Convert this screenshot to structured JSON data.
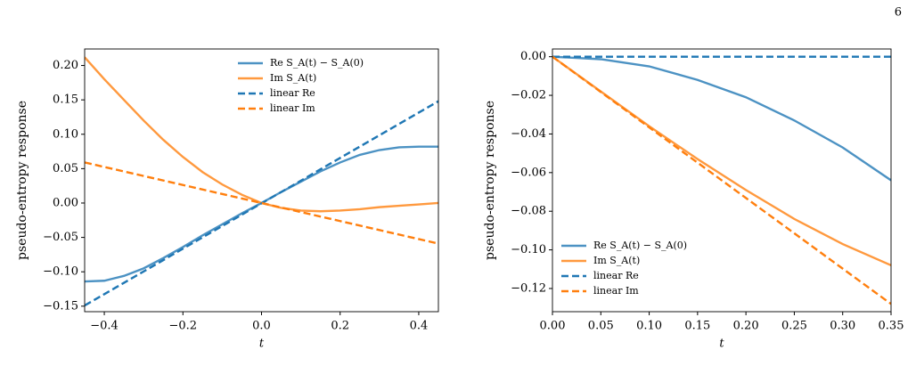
{
  "page_number": "6",
  "chart_data": [
    {
      "type": "line",
      "xlabel": "t",
      "ylabel": "pseudo-entropy response",
      "xlim": [
        -0.45,
        0.45
      ],
      "ylim": [
        -0.158,
        0.224
      ],
      "xticks": [
        {
          "value": -0.4,
          "label": "−0.4"
        },
        {
          "value": -0.2,
          "label": "−0.2"
        },
        {
          "value": 0,
          "label": "0.0"
        },
        {
          "value": 0.2,
          "label": "0.2"
        },
        {
          "value": 0.4,
          "label": "0.4"
        }
      ],
      "yticks": [
        {
          "value": -0.15,
          "label": "−0.15"
        },
        {
          "value": -0.1,
          "label": "−0.10"
        },
        {
          "value": -0.05,
          "label": "−0.05"
        },
        {
          "value": 0,
          "label": "0.00"
        },
        {
          "value": 0.05,
          "label": "0.05"
        },
        {
          "value": 0.1,
          "label": "0.10"
        },
        {
          "value": 0.15,
          "label": "0.15"
        },
        {
          "value": 0.2,
          "label": "0.20"
        }
      ],
      "legend": "upper right",
      "series": [
        {
          "name": "Re S_A(t) − S_A(0)",
          "color": "#1f77b4",
          "style": "solid",
          "x": [
            -0.45,
            -0.4,
            -0.35,
            -0.3,
            -0.25,
            -0.2,
            -0.15,
            -0.1,
            -0.05,
            0,
            0.05,
            0.1,
            0.15,
            0.2,
            0.25,
            0.3,
            0.35,
            0.4,
            0.45
          ],
          "values": [
            -0.114,
            -0.113,
            -0.106,
            -0.095,
            -0.08,
            -0.064,
            -0.047,
            -0.031,
            -0.015,
            0,
            0.016,
            0.031,
            0.046,
            0.059,
            0.07,
            0.077,
            0.081,
            0.082,
            0.082
          ]
        },
        {
          "name": "Im S_A(t)",
          "color": "#ff7f0e",
          "style": "solid",
          "x": [
            -0.45,
            -0.4,
            -0.35,
            -0.3,
            -0.25,
            -0.2,
            -0.15,
            -0.1,
            -0.05,
            0,
            0.05,
            0.1,
            0.15,
            0.2,
            0.25,
            0.3,
            0.35,
            0.4,
            0.45
          ],
          "values": [
            0.212,
            0.18,
            0.15,
            0.12,
            0.092,
            0.067,
            0.045,
            0.027,
            0.012,
            0,
            -0.007,
            -0.011,
            -0.012,
            -0.011,
            -0.009,
            -0.006,
            -0.004,
            -0.002,
            0
          ]
        },
        {
          "name": "linear Re",
          "color": "#1f77b4",
          "style": "dashed",
          "x": [
            -0.45,
            0.45
          ],
          "values": [
            -0.149,
            0.148
          ]
        },
        {
          "name": "linear Im",
          "color": "#ff7f0e",
          "style": "dashed",
          "x": [
            -0.45,
            0.45
          ],
          "values": [
            0.059,
            -0.059
          ]
        }
      ]
    },
    {
      "type": "line",
      "xlabel": "t",
      "ylabel": "pseudo-entropy response",
      "xlim": [
        0,
        0.35
      ],
      "ylim": [
        -0.132,
        0.004
      ],
      "xticks": [
        {
          "value": 0,
          "label": "0.00"
        },
        {
          "value": 0.05,
          "label": "0.05"
        },
        {
          "value": 0.1,
          "label": "0.10"
        },
        {
          "value": 0.15,
          "label": "0.15"
        },
        {
          "value": 0.2,
          "label": "0.20"
        },
        {
          "value": 0.25,
          "label": "0.25"
        },
        {
          "value": 0.3,
          "label": "0.30"
        },
        {
          "value": 0.35,
          "label": "0.35"
        }
      ],
      "yticks": [
        {
          "value": -0.12,
          "label": "−0.12"
        },
        {
          "value": -0.1,
          "label": "−0.10"
        },
        {
          "value": -0.08,
          "label": "−0.08"
        },
        {
          "value": -0.06,
          "label": "−0.06"
        },
        {
          "value": -0.04,
          "label": "−0.04"
        },
        {
          "value": -0.02,
          "label": "−0.02"
        },
        {
          "value": 0,
          "label": "0.00"
        }
      ],
      "legend": "lower left",
      "series": [
        {
          "name": "Re S_A(t) − S_A(0)",
          "color": "#1f77b4",
          "style": "solid",
          "x": [
            0,
            0.05,
            0.1,
            0.15,
            0.2,
            0.25,
            0.3,
            0.35
          ],
          "values": [
            0,
            -0.0013,
            -0.005,
            -0.012,
            -0.021,
            -0.033,
            -0.047,
            -0.064
          ]
        },
        {
          "name": "Im S_A(t)",
          "color": "#ff7f0e",
          "style": "solid",
          "x": [
            0,
            0.05,
            0.1,
            0.15,
            0.2,
            0.25,
            0.3,
            0.35
          ],
          "values": [
            0,
            -0.018,
            -0.036,
            -0.053,
            -0.069,
            -0.084,
            -0.097,
            -0.108
          ]
        },
        {
          "name": "linear Re",
          "color": "#1f77b4",
          "style": "dashed",
          "x": [
            0,
            0.35
          ],
          "values": [
            0,
            0
          ]
        },
        {
          "name": "linear Im",
          "color": "#ff7f0e",
          "style": "dashed",
          "x": [
            0,
            0.35
          ],
          "values": [
            0,
            -0.128
          ]
        }
      ]
    }
  ]
}
